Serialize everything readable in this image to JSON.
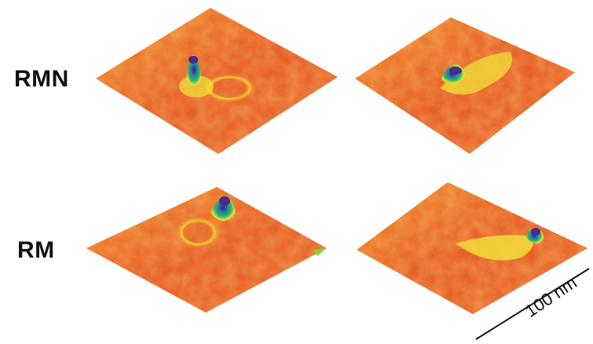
{
  "labels": {
    "row1": "RMN",
    "row2": "RM"
  },
  "scale_bar": {
    "text": "100 nm"
  },
  "colors": {
    "base_red": "#e0401c",
    "orange": "#f07a22",
    "yellow": "#f2e43a",
    "green": "#34b86a",
    "peak_purple": "#4a2a8a"
  }
}
